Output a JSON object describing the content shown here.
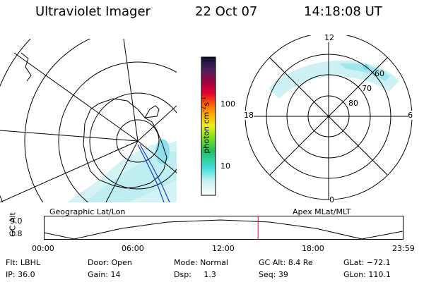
{
  "header": {
    "instrument": "Ultraviolet Imager",
    "date": "22 Oct 07",
    "time": "14:18:08 UT"
  },
  "panels": {
    "left_label": "Geographic Lat/Lon",
    "right_label": "Apex MLat/MLT"
  },
  "colorbar": {
    "label_main": "photon cm",
    "label_exp1": "-2",
    "label_mid": "s",
    "label_exp2": "-1",
    "ticks": [
      "100",
      "10"
    ]
  },
  "polar": {
    "mlt_labels": {
      "top": "12",
      "left": "18",
      "right": "6",
      "bottom": "0"
    },
    "lat_labels": [
      "60",
      "70",
      "80"
    ]
  },
  "timeline": {
    "y_label": "GC Alt",
    "y_ticks": [
      "9.0",
      "1.8"
    ],
    "x_ticks": [
      "00:00",
      "06:00",
      "12:00",
      "18:00",
      "23:59"
    ],
    "current_time_hours": 14.3
  },
  "info": {
    "filter": "Flt: LBHL",
    "ip": "IP: 36.0",
    "door": "Door: Open",
    "gain": "Gain: 14",
    "mode": "Mode: Normal",
    "dsp": "Dsp:     1.3",
    "gc_alt": "GC Alt: 8.4 Re",
    "seq": "Seq: 39",
    "glat": "GLat: −72.1",
    "glon": "GLon: 110.1"
  },
  "colors": {
    "aurora": "#b9ecf0",
    "aurora_dark": "#7fdbe6",
    "track": "#1a3fd0",
    "time_marker": "#d4004a"
  }
}
